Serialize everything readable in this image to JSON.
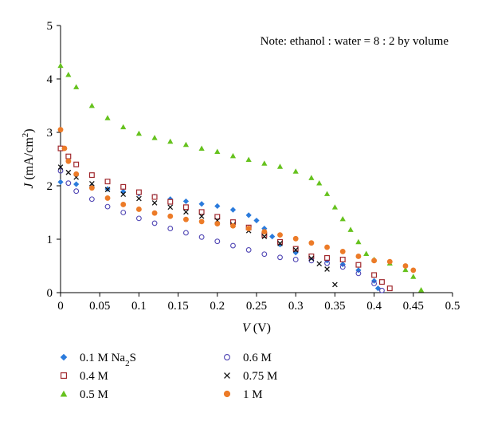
{
  "chart_data": {
    "type": "scatter",
    "title": "",
    "note": "Note: ethanol : water = 8 : 2 by volume",
    "xlabel": {
      "symbol": "V",
      "unit": " (V)"
    },
    "ylabel": {
      "symbol": "J",
      "unit_prefix": " (mA/cm",
      "unit_sup": "2",
      "unit_suffix": ")"
    },
    "xlim": [
      0,
      0.5
    ],
    "ylim": [
      0,
      5
    ],
    "xticks": [
      "0",
      "0.05",
      "0.1",
      "0.15",
      "0.2",
      "0.25",
      "0.3",
      "0.35",
      "0.4",
      "0.45",
      "0.5"
    ],
    "yticks": [
      "0",
      "1",
      "2",
      "3",
      "4",
      "5"
    ],
    "grid": false,
    "legend_position": "bottom",
    "series": [
      {
        "name": "0.1 M Na",
        "name_sub": "2",
        "name_suffix": "S",
        "marker": "diamond",
        "color": "#2b7bdc",
        "points": [
          [
            0,
            2.07
          ],
          [
            0.02,
            2.03
          ],
          [
            0.04,
            1.98
          ],
          [
            0.06,
            1.94
          ],
          [
            0.08,
            1.89
          ],
          [
            0.1,
            1.85
          ],
          [
            0.12,
            1.8
          ],
          [
            0.14,
            1.75
          ],
          [
            0.16,
            1.71
          ],
          [
            0.18,
            1.66
          ],
          [
            0.2,
            1.62
          ],
          [
            0.22,
            1.55
          ],
          [
            0.24,
            1.45
          ],
          [
            0.25,
            1.35
          ],
          [
            0.26,
            1.2
          ],
          [
            0.27,
            1.05
          ],
          [
            0.28,
            0.9
          ],
          [
            0.3,
            0.75
          ],
          [
            0.32,
            0.66
          ],
          [
            0.34,
            0.6
          ],
          [
            0.36,
            0.53
          ],
          [
            0.38,
            0.42
          ],
          [
            0.4,
            0.22
          ],
          [
            0.405,
            0.08
          ]
        ]
      },
      {
        "name": "0.4 M",
        "marker": "square",
        "color": "#a0282d",
        "points": [
          [
            0,
            2.7
          ],
          [
            0.01,
            2.55
          ],
          [
            0.02,
            2.4
          ],
          [
            0.04,
            2.2
          ],
          [
            0.06,
            2.08
          ],
          [
            0.08,
            1.98
          ],
          [
            0.1,
            1.88
          ],
          [
            0.12,
            1.79
          ],
          [
            0.14,
            1.7
          ],
          [
            0.16,
            1.6
          ],
          [
            0.18,
            1.51
          ],
          [
            0.2,
            1.42
          ],
          [
            0.22,
            1.32
          ],
          [
            0.24,
            1.22
          ],
          [
            0.26,
            1.08
          ],
          [
            0.28,
            0.95
          ],
          [
            0.3,
            0.82
          ],
          [
            0.32,
            0.68
          ],
          [
            0.34,
            0.65
          ],
          [
            0.36,
            0.62
          ],
          [
            0.38,
            0.52
          ],
          [
            0.4,
            0.33
          ],
          [
            0.41,
            0.2
          ],
          [
            0.42,
            0.08
          ]
        ]
      },
      {
        "name": "0.5 M",
        "marker": "triangle",
        "color": "#66c21e",
        "points": [
          [
            0,
            4.25
          ],
          [
            0.01,
            4.08
          ],
          [
            0.02,
            3.85
          ],
          [
            0.04,
            3.5
          ],
          [
            0.06,
            3.27
          ],
          [
            0.08,
            3.1
          ],
          [
            0.1,
            2.98
          ],
          [
            0.12,
            2.9
          ],
          [
            0.14,
            2.83
          ],
          [
            0.16,
            2.77
          ],
          [
            0.18,
            2.7
          ],
          [
            0.2,
            2.64
          ],
          [
            0.22,
            2.56
          ],
          [
            0.24,
            2.49
          ],
          [
            0.26,
            2.42
          ],
          [
            0.28,
            2.36
          ],
          [
            0.3,
            2.27
          ],
          [
            0.32,
            2.15
          ],
          [
            0.33,
            2.05
          ],
          [
            0.34,
            1.85
          ],
          [
            0.35,
            1.6
          ],
          [
            0.36,
            1.38
          ],
          [
            0.37,
            1.18
          ],
          [
            0.38,
            0.95
          ],
          [
            0.39,
            0.73
          ],
          [
            0.4,
            0.62
          ],
          [
            0.42,
            0.55
          ],
          [
            0.44,
            0.43
          ],
          [
            0.45,
            0.3
          ],
          [
            0.46,
            0.05
          ]
        ]
      },
      {
        "name": "0.6 M",
        "marker": "circle-open",
        "color": "#5046b4",
        "points": [
          [
            0,
            2.28
          ],
          [
            0.01,
            2.05
          ],
          [
            0.02,
            1.9
          ],
          [
            0.04,
            1.75
          ],
          [
            0.06,
            1.61
          ],
          [
            0.08,
            1.5
          ],
          [
            0.1,
            1.39
          ],
          [
            0.12,
            1.3
          ],
          [
            0.14,
            1.2
          ],
          [
            0.16,
            1.12
          ],
          [
            0.18,
            1.04
          ],
          [
            0.2,
            0.96
          ],
          [
            0.22,
            0.88
          ],
          [
            0.24,
            0.8
          ],
          [
            0.26,
            0.72
          ],
          [
            0.28,
            0.66
          ],
          [
            0.3,
            0.62
          ],
          [
            0.32,
            0.6
          ],
          [
            0.34,
            0.55
          ],
          [
            0.36,
            0.48
          ],
          [
            0.38,
            0.36
          ],
          [
            0.4,
            0.17
          ],
          [
            0.41,
            0.04
          ]
        ]
      },
      {
        "name": "0.75 M",
        "marker": "cross",
        "color": "#111111",
        "points": [
          [
            0,
            2.35
          ],
          [
            0.01,
            2.25
          ],
          [
            0.02,
            2.16
          ],
          [
            0.04,
            2.04
          ],
          [
            0.06,
            1.93
          ],
          [
            0.08,
            1.84
          ],
          [
            0.1,
            1.76
          ],
          [
            0.12,
            1.68
          ],
          [
            0.14,
            1.6
          ],
          [
            0.16,
            1.51
          ],
          [
            0.18,
            1.43
          ],
          [
            0.2,
            1.35
          ],
          [
            0.22,
            1.27
          ],
          [
            0.24,
            1.16
          ],
          [
            0.26,
            1.05
          ],
          [
            0.28,
            0.92
          ],
          [
            0.3,
            0.8
          ],
          [
            0.32,
            0.64
          ],
          [
            0.33,
            0.54
          ],
          [
            0.34,
            0.44
          ],
          [
            0.35,
            0.15
          ]
        ]
      },
      {
        "name": "1 M",
        "marker": "circle-filled",
        "color": "#ec7b28",
        "points": [
          [
            0,
            3.05
          ],
          [
            0.005,
            2.7
          ],
          [
            0.01,
            2.46
          ],
          [
            0.02,
            2.22
          ],
          [
            0.04,
            1.96
          ],
          [
            0.06,
            1.77
          ],
          [
            0.08,
            1.65
          ],
          [
            0.1,
            1.56
          ],
          [
            0.12,
            1.49
          ],
          [
            0.14,
            1.43
          ],
          [
            0.16,
            1.37
          ],
          [
            0.18,
            1.33
          ],
          [
            0.2,
            1.29
          ],
          [
            0.22,
            1.25
          ],
          [
            0.24,
            1.2
          ],
          [
            0.26,
            1.14
          ],
          [
            0.28,
            1.08
          ],
          [
            0.3,
            1.01
          ],
          [
            0.32,
            0.93
          ],
          [
            0.34,
            0.85
          ],
          [
            0.36,
            0.77
          ],
          [
            0.38,
            0.68
          ],
          [
            0.4,
            0.6
          ],
          [
            0.42,
            0.58
          ],
          [
            0.44,
            0.5
          ],
          [
            0.45,
            0.42
          ]
        ]
      }
    ]
  }
}
